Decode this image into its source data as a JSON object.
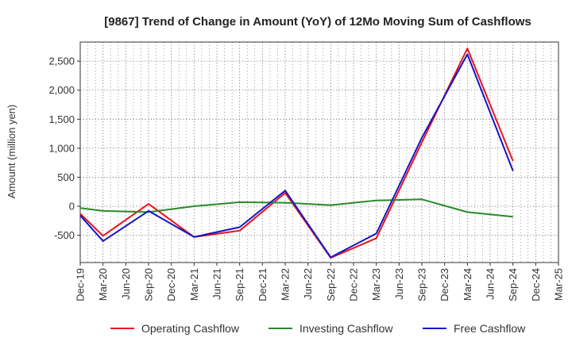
{
  "chart_data": {
    "type": "line",
    "title": "[9867]  Trend of Change in Amount (YoY) of 12Mo Moving Sum of Cashflows",
    "xlabel": "",
    "ylabel": "Amount (million yen)",
    "categories": [
      "Dec-19",
      "Mar-20",
      "Jun-20",
      "Sep-20",
      "Dec-20",
      "Mar-21",
      "Jun-21",
      "Sep-21",
      "Dec-21",
      "Mar-22",
      "Jun-22",
      "Sep-22",
      "Dec-22",
      "Mar-23",
      "Jun-23",
      "Sep-23",
      "Dec-23",
      "Mar-24",
      "Jun-24",
      "Sep-24",
      "Dec-24",
      "Mar-25"
    ],
    "yticks": [
      -500,
      0,
      500,
      1000,
      1500,
      2000,
      2500
    ],
    "ytick_labels": [
      "-500",
      "0",
      "500",
      "1,000",
      "1,500",
      "2,000",
      "2,500"
    ],
    "ylim": [
      -970,
      2830
    ],
    "grid": true,
    "legend_position": "bottom",
    "series": [
      {
        "name": "Operating Cashflow",
        "color": "#e8141b",
        "values": [
          -130,
          -510,
          null,
          40,
          null,
          -530,
          null,
          -420,
          null,
          230,
          null,
          -890,
          null,
          -550,
          null,
          1100,
          null,
          2720,
          null,
          780,
          null,
          null
        ]
      },
      {
        "name": "Investing Cashflow",
        "color": "#2a8a2a",
        "values": [
          -30,
          -80,
          null,
          -100,
          null,
          0,
          null,
          70,
          null,
          60,
          null,
          20,
          null,
          100,
          null,
          120,
          null,
          -100,
          null,
          -180,
          null,
          null
        ]
      },
      {
        "name": "Free Cashflow",
        "color": "#1515c8",
        "values": [
          -160,
          -600,
          null,
          -80,
          null,
          -530,
          null,
          -360,
          null,
          270,
          null,
          -880,
          null,
          -470,
          null,
          1180,
          null,
          2620,
          null,
          610,
          null,
          null
        ]
      }
    ]
  }
}
